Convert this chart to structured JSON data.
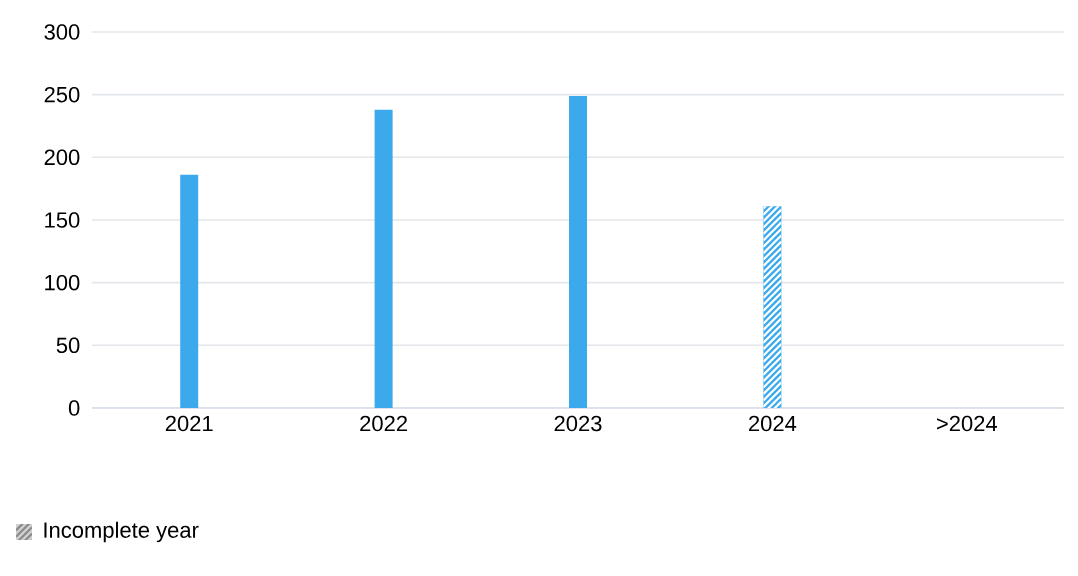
{
  "chart_data": {
    "type": "bar",
    "categories": [
      "2021",
      "2022",
      "2023",
      "2024",
      ">2024"
    ],
    "series": [
      {
        "color": "#3ba9ec",
        "values": [
          186,
          238,
          249,
          null,
          null
        ]
      },
      {
        "name": "Incomplete year",
        "color": "#3ba9ec",
        "values": [
          null,
          null,
          null,
          161,
          null
        ]
      }
    ],
    "ylim": [
      0,
      300
    ],
    "yticks": [
      0,
      50,
      100,
      150,
      200,
      250,
      300
    ],
    "grid": "y",
    "legend": "bottom left"
  }
}
